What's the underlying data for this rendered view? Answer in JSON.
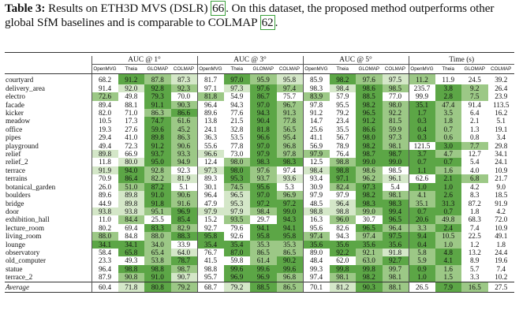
{
  "caption": {
    "label": "Table 3:",
    "text_before": " Results on ETH3D MVS (DSLR) ",
    "cite1": "66",
    "text_middle": ". On this dataset, the proposed method outperforms other global SfM baselines and is comparable to COLMAP ",
    "cite2": "62",
    "text_after": "."
  },
  "table": {
    "groups": [
      "AUC @ 1°",
      "AUC @ 3°",
      "AUC @ 5°",
      "Time (s)"
    ],
    "methods": [
      "OpenMVG",
      "Theia",
      "GLOMAP",
      "COLMAP"
    ],
    "shade_colors": {
      "light": "#d4e7c8",
      "mid": "#9cc886",
      "dark": "#5ca646"
    },
    "rows": [
      {
        "name": "courtyard",
        "v": [
          "68.2",
          "91.2",
          "87.8",
          "87.3",
          "81.7",
          "97.0",
          "95.9",
          "95.8",
          "85.9",
          "98.2",
          "97.6",
          "97.5",
          "11.2",
          "11.9",
          "24.5",
          "39.2"
        ],
        "s": [
          0,
          3,
          2,
          1,
          0,
          3,
          2,
          1,
          0,
          3,
          2,
          1,
          2,
          0,
          0,
          0
        ]
      },
      {
        "name": "delivery_area",
        "v": [
          "91.4",
          "92.0",
          "92.8",
          "92.3",
          "97.1",
          "97.3",
          "97.6",
          "97.4",
          "98.3",
          "98.4",
          "98.6",
          "98.5",
          "235.7",
          "3.8",
          "9.2",
          "26.4"
        ],
        "s": [
          0,
          1,
          3,
          2,
          0,
          1,
          3,
          2,
          0,
          1,
          3,
          2,
          0,
          3,
          2,
          0
        ]
      },
      {
        "name": "electro",
        "v": [
          "72.6",
          "49.8",
          "79.3",
          "70.0",
          "81.8",
          "54.9",
          "86.7",
          "75.7",
          "83.9",
          "57.9",
          "88.5",
          "77.0",
          "99.9",
          "2.8",
          "7.5",
          "23.9"
        ],
        "s": [
          2,
          0,
          3,
          0,
          2,
          0,
          3,
          0,
          2,
          0,
          3,
          0,
          0,
          3,
          2,
          0
        ]
      },
      {
        "name": "facade",
        "v": [
          "89.4",
          "88.1",
          "91.1",
          "90.3",
          "96.4",
          "94.3",
          "97.0",
          "96.7",
          "97.8",
          "95.5",
          "98.2",
          "98.0",
          "35.1",
          "47.4",
          "91.4",
          "113.5"
        ],
        "s": [
          0,
          0,
          3,
          2,
          0,
          0,
          3,
          2,
          0,
          0,
          3,
          2,
          3,
          2,
          0,
          0
        ]
      },
      {
        "name": "kicker",
        "v": [
          "82.0",
          "71.0",
          "86.3",
          "86.6",
          "89.6",
          "77.6",
          "94.3",
          "91.3",
          "91.2",
          "79.2",
          "96.5",
          "92.2",
          "1.7",
          "3.5",
          "6.4",
          "16.2"
        ],
        "s": [
          0,
          0,
          2,
          3,
          0,
          0,
          3,
          2,
          0,
          0,
          3,
          2,
          3,
          2,
          0,
          0
        ]
      },
      {
        "name": "meadow",
        "v": [
          "10.5",
          "17.3",
          "74.7",
          "61.6",
          "13.8",
          "21.5",
          "90.4",
          "77.8",
          "14.7",
          "23.4",
          "91.2",
          "81.5",
          "0.3",
          "1.8",
          "2.1",
          "5.1"
        ],
        "s": [
          0,
          0,
          3,
          2,
          0,
          0,
          3,
          2,
          0,
          0,
          3,
          2,
          3,
          2,
          0,
          0
        ]
      },
      {
        "name": "office",
        "v": [
          "19.3",
          "27.6",
          "59.6",
          "45.2",
          "24.1",
          "32.8",
          "81.8",
          "56.5",
          "25.6",
          "35.5",
          "86.6",
          "59.9",
          "0.4",
          "0.7",
          "1.3",
          "19.1"
        ],
        "s": [
          0,
          0,
          3,
          2,
          0,
          0,
          3,
          2,
          0,
          0,
          3,
          2,
          3,
          2,
          0,
          0
        ]
      },
      {
        "name": "pipes",
        "v": [
          "29.4",
          "41.0",
          "89.8",
          "86.3",
          "36.3",
          "53.5",
          "96.6",
          "95.4",
          "41.1",
          "56.7",
          "98.0",
          "97.3",
          "0.3",
          "0.6",
          "0.8",
          "3.4"
        ],
        "s": [
          0,
          0,
          3,
          2,
          0,
          0,
          3,
          2,
          0,
          0,
          3,
          2,
          3,
          2,
          0,
          0
        ]
      },
      {
        "name": "playground",
        "v": [
          "49.4",
          "72.3",
          "91.2",
          "90.6",
          "55.6",
          "77.8",
          "97.0",
          "96.8",
          "56.9",
          "78.9",
          "98.2",
          "98.1",
          "121.5",
          "3.0",
          "7.7",
          "29.8"
        ],
        "s": [
          0,
          0,
          3,
          2,
          0,
          0,
          3,
          2,
          0,
          0,
          3,
          2,
          0,
          3,
          2,
          0
        ]
      },
      {
        "name": "relief",
        "v": [
          "89.8",
          "66.9",
          "93.7",
          "93.3",
          "96.6",
          "73.0",
          "97.9",
          "97.8",
          "97.9",
          "76.4",
          "98.7",
          "98.7",
          "3.7",
          "4.7",
          "12.7",
          "34.1"
        ],
        "s": [
          1,
          0,
          3,
          2,
          1,
          0,
          3,
          2,
          2,
          0,
          3,
          3,
          3,
          2,
          0,
          0
        ]
      },
      {
        "name": "relief_2",
        "v": [
          "11.8",
          "80.0",
          "95.0",
          "94.9",
          "12.4",
          "98.0",
          "98.3",
          "98.3",
          "12.5",
          "98.8",
          "99.0",
          "99.0",
          "0.7",
          "0.7",
          "5.4",
          "24.1"
        ],
        "s": [
          0,
          1,
          3,
          2,
          0,
          2,
          3,
          3,
          0,
          2,
          3,
          3,
          3,
          3,
          0,
          0
        ]
      },
      {
        "name": "terrace",
        "v": [
          "91.9",
          "94.0",
          "92.8",
          "92.3",
          "97.3",
          "98.0",
          "97.6",
          "97.4",
          "98.4",
          "98.8",
          "98.6",
          "98.5",
          "1.1",
          "1.6",
          "4.0",
          "10.9"
        ],
        "s": [
          1,
          3,
          2,
          0,
          1,
          3,
          2,
          0,
          1,
          3,
          2,
          0,
          3,
          2,
          0,
          0
        ]
      },
      {
        "name": "terrains",
        "v": [
          "70.9",
          "86.4",
          "82.2",
          "81.9",
          "89.3",
          "95.3",
          "93.7",
          "93.6",
          "93.4",
          "97.1",
          "96.2",
          "96.1",
          "62.6",
          "2.1",
          "6.8",
          "21.7"
        ],
        "s": [
          0,
          3,
          2,
          1,
          0,
          3,
          2,
          1,
          0,
          3,
          2,
          1,
          0,
          3,
          2,
          0
        ]
      },
      {
        "name": "botanical_garden",
        "v": [
          "26.0",
          "51.0",
          "87.2",
          "5.1",
          "30.1",
          "74.5",
          "95.6",
          "5.3",
          "30.9",
          "82.4",
          "97.3",
          "5.4",
          "1.0",
          "1.0",
          "4.2",
          "9.0"
        ],
        "s": [
          0,
          2,
          3,
          0,
          0,
          2,
          3,
          0,
          0,
          2,
          3,
          0,
          3,
          3,
          0,
          0
        ]
      },
      {
        "name": "boulders",
        "v": [
          "89.6",
          "89.8",
          "91.0",
          "90.6",
          "96.4",
          "96.5",
          "97.0",
          "96.9",
          "97.9",
          "97.9",
          "98.2",
          "98.1",
          "4.1",
          "2.6",
          "8.3",
          "18.5"
        ],
        "s": [
          0,
          1,
          3,
          2,
          0,
          1,
          3,
          2,
          0,
          0,
          3,
          2,
          2,
          3,
          0,
          0
        ]
      },
      {
        "name": "bridge",
        "v": [
          "44.9",
          "89.8",
          "91.8",
          "91.6",
          "47.9",
          "95.3",
          "97.2",
          "97.2",
          "48.5",
          "96.4",
          "98.3",
          "98.3",
          "35.1",
          "31.3",
          "87.2",
          "91.9"
        ],
        "s": [
          0,
          1,
          3,
          2,
          0,
          1,
          3,
          3,
          0,
          1,
          3,
          3,
          2,
          3,
          0,
          0
        ]
      },
      {
        "name": "door",
        "v": [
          "93.8",
          "93.8",
          "95.1",
          "96.9",
          "97.9",
          "97.9",
          "98.4",
          "99.0",
          "98.8",
          "98.8",
          "99.0",
          "99.4",
          "0.7",
          "0.7",
          "1.8",
          "4.2"
        ],
        "s": [
          1,
          1,
          2,
          3,
          1,
          1,
          2,
          3,
          1,
          1,
          2,
          3,
          3,
          3,
          0,
          0
        ]
      },
      {
        "name": "exhibition_hall",
        "v": [
          "11.0",
          "84.4",
          "25.5",
          "85.4",
          "15.2",
          "93.5",
          "29.7",
          "94.3",
          "16.3",
          "96.0",
          "30.7",
          "96.5",
          "20.6",
          "49.8",
          "68.3",
          "72.0"
        ],
        "s": [
          0,
          2,
          0,
          3,
          0,
          2,
          0,
          3,
          0,
          2,
          0,
          3,
          3,
          2,
          0,
          0
        ]
      },
      {
        "name": "lecture_room",
        "v": [
          "80.2",
          "69.4",
          "83.3",
          "82.9",
          "92.7",
          "79.6",
          "94.1",
          "94.1",
          "95.6",
          "82.6",
          "96.5",
          "96.4",
          "3.3",
          "2.4",
          "7.4",
          "10.9"
        ],
        "s": [
          0,
          0,
          3,
          2,
          0,
          0,
          3,
          3,
          0,
          0,
          3,
          2,
          2,
          3,
          0,
          0
        ]
      },
      {
        "name": "living_room",
        "v": [
          "88.0",
          "84.8",
          "88.0",
          "88.3",
          "95.8",
          "92.6",
          "95.8",
          "95.8",
          "97.4",
          "94.3",
          "97.4",
          "97.5",
          "9.4",
          "10.5",
          "22.5",
          "49.1"
        ],
        "s": [
          2,
          0,
          2,
          3,
          3,
          0,
          3,
          3,
          2,
          0,
          2,
          3,
          3,
          2,
          0,
          0
        ]
      },
      {
        "name": "lounge",
        "v": [
          "34.1",
          "34.1",
          "34.0",
          "33.9",
          "35.4",
          "35.4",
          "35.3",
          "35.3",
          "35.6",
          "35.6",
          "35.6",
          "35.6",
          "0.4",
          "1.0",
          "1.2",
          "1.8"
        ],
        "s": [
          3,
          3,
          2,
          0,
          3,
          3,
          2,
          2,
          3,
          3,
          3,
          3,
          3,
          2,
          0,
          0
        ]
      },
      {
        "name": "observatory",
        "v": [
          "58.4",
          "65.8",
          "65.4",
          "64.0",
          "76.7",
          "87.0",
          "86.5",
          "86.5",
          "89.0",
          "92.2",
          "92.1",
          "91.8",
          "5.8",
          "4.8",
          "13.2",
          "24.4"
        ],
        "s": [
          0,
          3,
          2,
          1,
          0,
          3,
          2,
          2,
          0,
          3,
          2,
          1,
          2,
          3,
          0,
          0
        ]
      },
      {
        "name": "old_computer",
        "v": [
          "23.3",
          "49.3",
          "53.8",
          "78.7",
          "41.5",
          "59.8",
          "61.4",
          "90.2",
          "48.4",
          "62.0",
          "63.0",
          "92.7",
          "5.9",
          "4.1",
          "8.9",
          "19.6"
        ],
        "s": [
          0,
          0,
          2,
          3,
          0,
          0,
          2,
          3,
          0,
          0,
          2,
          3,
          2,
          3,
          0,
          0
        ]
      },
      {
        "name": "statue",
        "v": [
          "96.4",
          "98.8",
          "98.8",
          "98.7",
          "98.8",
          "99.6",
          "99.6",
          "99.6",
          "99.3",
          "99.8",
          "99.8",
          "99.7",
          "0.9",
          "1.6",
          "5.7",
          "7.4"
        ],
        "s": [
          0,
          3,
          3,
          2,
          0,
          3,
          3,
          3,
          0,
          3,
          3,
          2,
          3,
          2,
          0,
          0
        ]
      },
      {
        "name": "terrace_2",
        "v": [
          "87.9",
          "90.8",
          "91.0",
          "90.7",
          "95.7",
          "96.9",
          "96.9",
          "96.8",
          "97.4",
          "98.1",
          "98.2",
          "98.1",
          "1.0",
          "1.5",
          "3.3",
          "10.2"
        ],
        "s": [
          0,
          2,
          3,
          1,
          0,
          3,
          3,
          2,
          0,
          2,
          3,
          2,
          3,
          2,
          0,
          0
        ]
      }
    ],
    "average": {
      "name": "Average",
      "v": [
        "60.4",
        "71.8",
        "80.8",
        "79.2",
        "68.7",
        "79.2",
        "88.5",
        "86.5",
        "70.1",
        "81.2",
        "90.3",
        "88.1",
        "26.5",
        "7.9",
        "16.5",
        "27.5"
      ],
      "s": [
        0,
        1,
        3,
        2,
        0,
        1,
        3,
        2,
        0,
        1,
        3,
        2,
        0,
        3,
        2,
        0
      ]
    }
  }
}
